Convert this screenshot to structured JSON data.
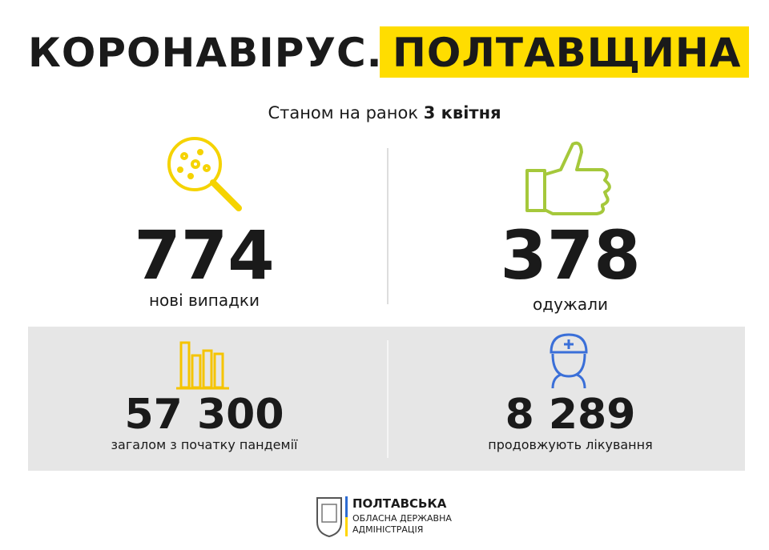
{
  "header": {
    "title": "КОРОНАВІРУС.",
    "highlight": "ПОЛТАВЩИНА",
    "subtitle": "Станом на ранок",
    "date": "3 квітня"
  },
  "stats": [
    {
      "value": "774",
      "label": "нові випадки"
    },
    {
      "value": "378",
      "label": "одужали"
    },
    {
      "value": "57 300",
      "label": "загалом з початку пандемії"
    },
    {
      "value": "8 289",
      "label": "продовжують лікування"
    }
  ],
  "footer": {
    "lines": [
      "ПОЛТАВСЬКА",
      "ОБЛАСНА ДЕРЖАВНА",
      "АДМІНІСТРАЦІЯ"
    ]
  }
}
